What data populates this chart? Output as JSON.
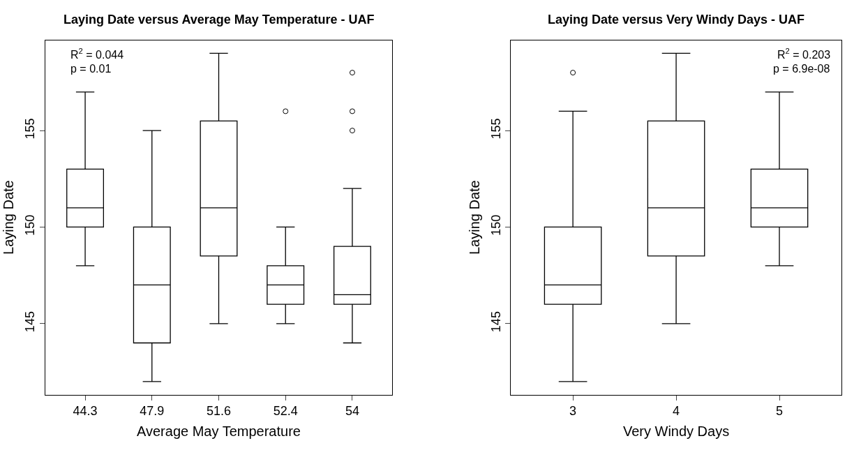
{
  "chart_data": [
    {
      "type": "box",
      "title": "Laying Date versus Average May Temperature - UAF",
      "xlabel": "Average May Temperature",
      "ylabel": "Laying Date",
      "categories": [
        "44.3",
        "47.9",
        "51.6",
        "52.4",
        "54"
      ],
      "boxes": [
        {
          "low": 148,
          "q1": 150,
          "median": 151,
          "q3": 153,
          "high": 157
        },
        {
          "low": 142,
          "q1": 144,
          "median": 147,
          "q3": 150,
          "high": 155
        },
        {
          "low": 145,
          "q1": 148.5,
          "median": 151,
          "q3": 155.5,
          "high": 159
        },
        {
          "low": 145,
          "q1": 146,
          "median": 147,
          "q3": 148,
          "high": 150,
          "outliers": [
            156
          ]
        },
        {
          "low": 144,
          "q1": 146,
          "median": 146.5,
          "q3": 149,
          "high": 152,
          "outliers": [
            155,
            156,
            158
          ]
        }
      ],
      "ylim": [
        141.32,
        159.68
      ],
      "yticks": [
        145,
        150,
        155
      ],
      "annotations": [
        "R$^{2}$ = 0.044",
        "p = 0.01"
      ]
    },
    {
      "type": "box",
      "title": "Laying Date versus Very Windy Days - UAF",
      "xlabel": "Very Windy Days",
      "ylabel": "Laying Date",
      "categories": [
        "3",
        "4",
        "5"
      ],
      "boxes": [
        {
          "low": 142,
          "q1": 146,
          "median": 147,
          "q3": 150,
          "high": 156,
          "outliers": [
            158
          ]
        },
        {
          "low": 145,
          "q1": 148.5,
          "median": 151,
          "q3": 155.5,
          "high": 159
        },
        {
          "low": 148,
          "q1": 150,
          "median": 151,
          "q3": 153,
          "high": 157
        }
      ],
      "ylim": [
        141.32,
        159.68
      ],
      "yticks": [
        145,
        150,
        155
      ],
      "annotations": [
        "R$^{2}$ = 0.203",
        "p = 6.9e-08"
      ]
    }
  ]
}
